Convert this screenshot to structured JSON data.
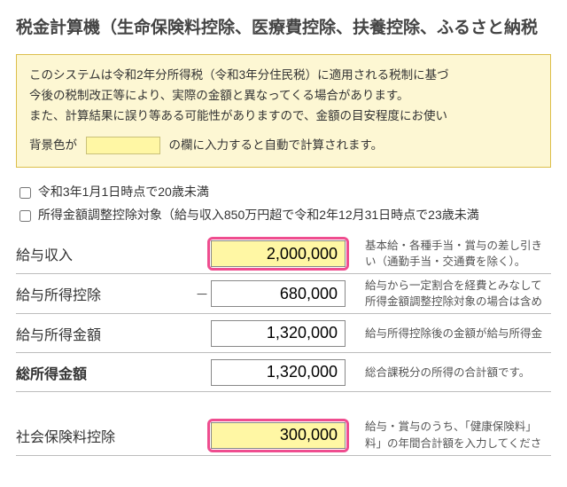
{
  "title": "税金計算機（生命保険料控除、医療費控除、扶養控除、ふるさと納税",
  "notice": {
    "line1": "このシステムは令和2年分所得税（令和3年分住民税）に適用される税制に基づ",
    "line2a": "今後の税制改正等により、実際の金額と異なってくる場合があります。",
    "line2b": "また、計算結果に誤り等ある可能性がありますので、金額の目安程度にお使い",
    "swatch_prefix": "背景色が",
    "swatch_suffix": "の欄に入力すると自動で計算されます。"
  },
  "checkboxes": {
    "under20": "令和3年1月1日時点で20歳未満",
    "adjustment": "所得金額調整控除対象（給与収入850万円超で令和2年12月31日時点で23歳未満"
  },
  "rows": {
    "salary_income": {
      "label": "給与収入",
      "value": "2,000,000",
      "desc": "基本給・各種手当・賞与の差し引き\nい（通勤手当・交通費を除く）。"
    },
    "salary_deduction": {
      "label": "給与所得控除",
      "value": "680,000",
      "desc": "給与から一定割合を経費とみなして\n所得金額調整控除対象の場合は含め"
    },
    "salary_amount": {
      "label": "給与所得金額",
      "value": "1,320,000",
      "desc": "給与所得控除後の金額が給与所得金"
    },
    "total_income": {
      "label": "総所得金額",
      "value": "1,320,000",
      "desc": "総合課税分の所得の合計額です。"
    },
    "social_insurance": {
      "label": "社会保険料控除",
      "value": "300,000",
      "desc": "給与・賞与のうち、「健康保険料」\n料」の年間合計額を入力してくださ"
    }
  }
}
